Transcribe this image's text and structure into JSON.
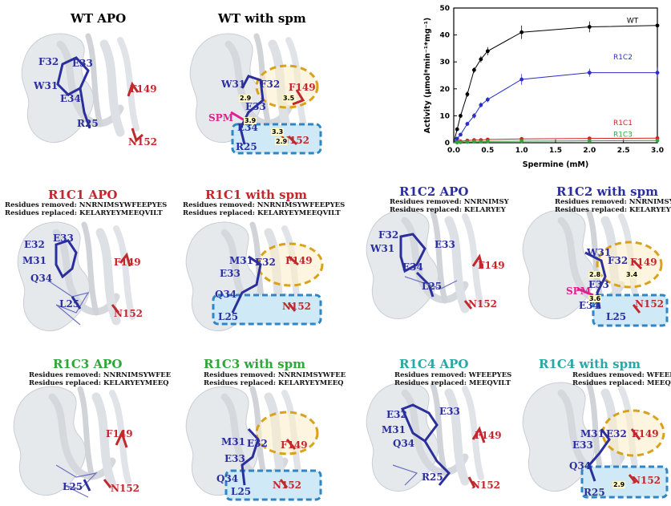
{
  "panels": {
    "wt_apo": {
      "title": "WT APO",
      "labels": {
        "f32": "F32",
        "e33": "E33",
        "w31": "W31",
        "e34": "E34",
        "r25": "R25",
        "f149": "F149",
        "n152": "N152"
      }
    },
    "wt_spm": {
      "title": "WT with spm",
      "labels": {
        "w31": "W31",
        "f32": "F32",
        "e33": "E33",
        "spm": "SPM",
        "e34": "E34",
        "r25": "R25",
        "f149": "F149",
        "n152": "N152"
      },
      "distances": [
        "2.9",
        "3.5",
        "3.9",
        "3.3",
        "2.9"
      ]
    },
    "r1c1_apo": {
      "title": "R1C1 APO",
      "removed": "Residues removed: NNRNIMSYWFEEPYES",
      "replaced": "Residues replaced: KELARYEYMEEQVILT",
      "labels": {
        "e32": "E32",
        "e33": "E33",
        "m31": "M31",
        "q34": "Q34",
        "l25": "L25",
        "f149": "F149",
        "n152": "N152"
      }
    },
    "r1c1_spm": {
      "title": "R1C1 with spm",
      "removed": "Residues removed: NNRNIMSYWFEEPYES",
      "replaced": "Residues replaced: KELARYEYMEEQVILT",
      "labels": {
        "m31": "M31",
        "e32": "E32",
        "e33": "E33",
        "q34": "Q34",
        "l25": "L25",
        "f149": "F149",
        "n152": "N152"
      }
    },
    "r1c2_apo": {
      "title": "R1C2 APO",
      "removed": "Residues removed: NNRNIMSY",
      "replaced": "Residues replaced: KELARYEY",
      "labels": {
        "f32": "F32",
        "w31": "W31",
        "e33": "E33",
        "e34": "E34",
        "l25": "L25",
        "f149": "F149",
        "n152": "N152"
      }
    },
    "r1c2_spm": {
      "title": "R1C2 with spm",
      "removed": "Residues removed: NNRNIMSY",
      "replaced": "Residues replaced: KELARYEY",
      "labels": {
        "w31": "W31",
        "f32": "F32",
        "f149": "F149",
        "spm": "SPM",
        "e33": "E33",
        "e34": "E34",
        "l25": "L25",
        "n152": "N152"
      },
      "distances": [
        "2.8",
        "3.4",
        "3.6"
      ]
    },
    "r1c3_apo": {
      "title": "R1C3 APO",
      "removed": "Residues removed: NNRNIMSYWFEE",
      "replaced": "Residues replaced: KELARYEYMEEQ",
      "labels": {
        "f149": "F149",
        "l25": "L25",
        "n152": "N152"
      }
    },
    "r1c3_spm": {
      "title": "R1C3 with spm",
      "removed": "Residues removed: NNRNIMSYWFEE",
      "replaced": "Residues replaced: KELARYEYMEEQ",
      "labels": {
        "m31": "M31",
        "e32": "E32",
        "f149": "F149",
        "e33": "E33",
        "q34": "Q34",
        "l25": "L25",
        "n152": "N152"
      }
    },
    "r1c4_apo": {
      "title": "R1C4 APO",
      "removed": "Residues removed: WFEEPYES",
      "replaced": "Residues replaced: MEEQVILT",
      "labels": {
        "e32": "E32",
        "e33": "E33",
        "m31": "M31",
        "q34": "Q34",
        "f149": "F149",
        "r25": "R25",
        "n152": "N152"
      }
    },
    "r1c4_spm": {
      "title": "R1C4 with spm",
      "removed": "Residues removed: WFEEPYES",
      "replaced": "Residues replaced: MEEQVILT",
      "labels": {
        "m31": "M31",
        "e32": "E32",
        "f149": "F149",
        "e33": "E33",
        "q34": "Q34",
        "r25": "R25",
        "n152": "N152"
      },
      "distances": [
        "2.9"
      ]
    }
  },
  "colors": {
    "blue": "#2b2f9b",
    "red": "#c0282c",
    "pink": "#e0208f",
    "green": "#2fa63a",
    "teal": "#2aa6a6",
    "ribbon": "#e3e6ea",
    "orange": "#d9a21b",
    "cyan_box": "#cfeaf6",
    "cyan_border": "#2f86c6"
  },
  "chart_data": {
    "type": "line",
    "xlabel": "Spermine (mM)",
    "ylabel": "Activity (µmol*min⁻¹*mg⁻¹)",
    "xlim": [
      0,
      3.0
    ],
    "ylim": [
      0,
      50
    ],
    "xticks": [
      "0.0",
      "0.5",
      "1.0",
      "1.5",
      "2.0",
      "2.5",
      "3.0"
    ],
    "yticks": [
      "0",
      "10",
      "20",
      "30",
      "40",
      "50"
    ],
    "series": [
      {
        "name": "WT",
        "color": "#000000",
        "x": [
          0,
          0.05,
          0.1,
          0.2,
          0.3,
          0.4,
          0.5,
          1.0,
          2.0,
          3.0
        ],
        "y": [
          0,
          5,
          10,
          18,
          27,
          31,
          34,
          41,
          43,
          43.5
        ],
        "err": [
          0,
          0.5,
          0.8,
          1,
          1,
          1.2,
          1.5,
          2.5,
          2,
          3
        ]
      },
      {
        "name": "R1C2",
        "color": "#2b2fc8",
        "x": [
          0,
          0.05,
          0.1,
          0.2,
          0.3,
          0.4,
          0.5,
          1.0,
          2.0,
          3.0
        ],
        "y": [
          0,
          1.5,
          3,
          7,
          10,
          14,
          16,
          23.5,
          26,
          26
        ],
        "err": [
          0,
          0.3,
          0.5,
          0.8,
          1,
          1,
          1,
          2,
          1.5,
          2
        ]
      },
      {
        "name": "R1C1",
        "color": "#d42020",
        "x": [
          0,
          0.05,
          0.1,
          0.2,
          0.3,
          0.4,
          0.5,
          1.0,
          2.0,
          3.0
        ],
        "y": [
          0,
          0.3,
          0.5,
          0.8,
          1,
          1,
          1.2,
          1.4,
          1.6,
          1.7
        ],
        "err": [
          0,
          0,
          0,
          0,
          0,
          0,
          0,
          0,
          0,
          0
        ]
      },
      {
        "name": "R1C3",
        "color": "#2fa63a",
        "x": [
          0,
          0.05,
          0.1,
          0.2,
          0.3,
          0.4,
          0.5,
          1.0,
          2.0,
          3.0
        ],
        "y": [
          0,
          0.1,
          0.2,
          0.3,
          0.4,
          0.4,
          0.5,
          0.6,
          0.7,
          0.8
        ],
        "err": [
          0,
          0,
          0,
          0,
          0,
          0,
          0,
          0,
          0,
          0
        ]
      }
    ]
  }
}
